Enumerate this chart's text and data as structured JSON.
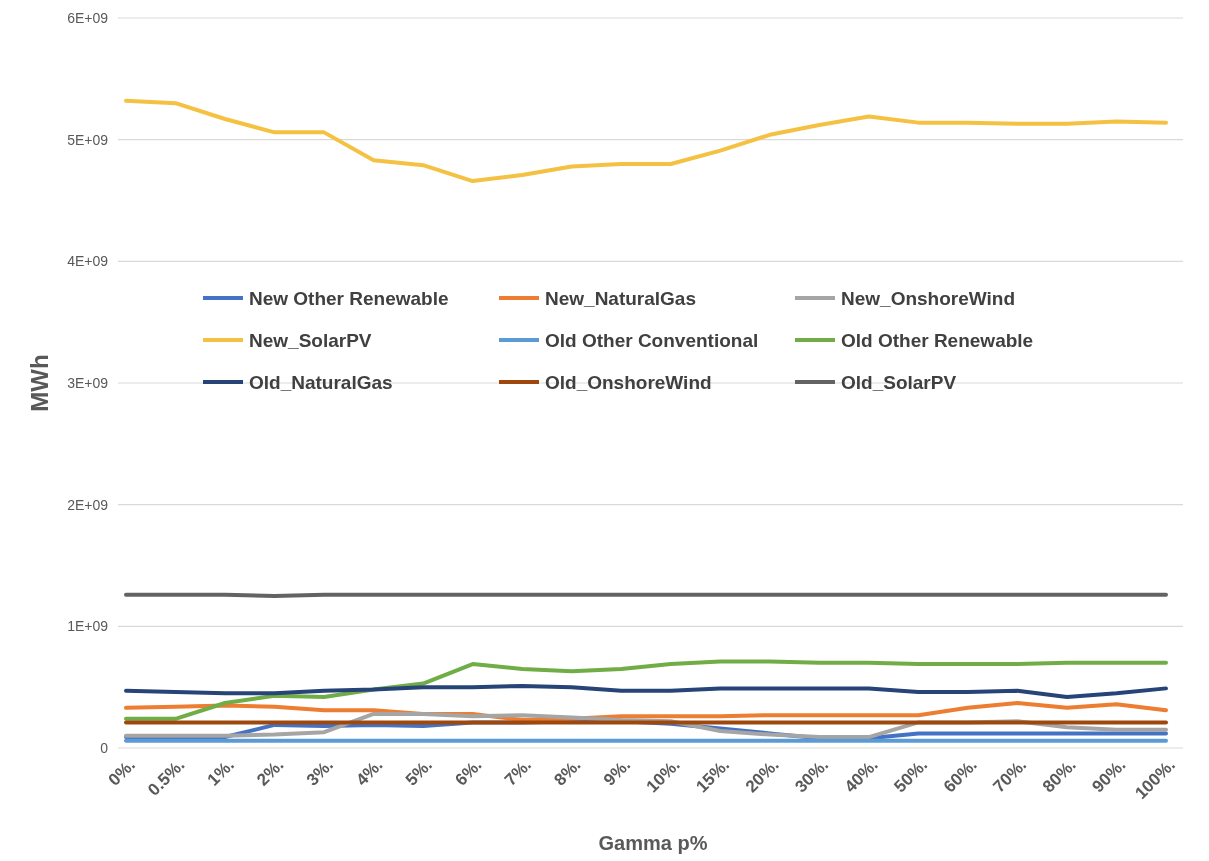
{
  "chart_data": {
    "type": "line",
    "xlabel": "Gamma p%",
    "ylabel": "MWh",
    "categories": [
      "0%.",
      "0.5%.",
      "1%.",
      "2%.",
      "3%.",
      "4%.",
      "5%.",
      "6%.",
      "7%.",
      "8%.",
      "9%.",
      "10%.",
      "15%.",
      "20%.",
      "30%.",
      "40%.",
      "50%.",
      "60%.",
      "70%.",
      "80%.",
      "90%.",
      "100%."
    ],
    "ylim": [
      0,
      6000000000
    ],
    "yticks": [
      0,
      {
        "value": 1000000000,
        "label": "1E+09"
      },
      {
        "value": 2000000000,
        "label": "2E+09"
      },
      {
        "value": 3000000000,
        "label": "3E+09"
      },
      {
        "value": 4000000000,
        "label": "4E+09"
      },
      {
        "value": 5000000000,
        "label": "5E+09"
      },
      {
        "value": 6000000000,
        "label": "6E+09"
      }
    ],
    "grid": "y",
    "legend": "top",
    "marker": "none",
    "line_style": "solid",
    "series": [
      {
        "name": "New Other Renewable",
        "color": "#4472c4",
        "values": [
          90000000,
          90000000,
          90000000,
          190000000,
          180000000,
          190000000,
          180000000,
          210000000,
          210000000,
          220000000,
          220000000,
          200000000,
          160000000,
          120000000,
          80000000,
          80000000,
          120000000,
          120000000,
          120000000,
          120000000,
          120000000,
          120000000
        ]
      },
      {
        "name": "New_NaturalGas",
        "color": "#ed7d31",
        "values": [
          330000000,
          340000000,
          350000000,
          340000000,
          310000000,
          310000000,
          280000000,
          280000000,
          230000000,
          240000000,
          260000000,
          260000000,
          260000000,
          270000000,
          270000000,
          270000000,
          270000000,
          330000000,
          370000000,
          330000000,
          360000000,
          310000000
        ]
      },
      {
        "name": "New_OnshoreWind",
        "color": "#a5a5a5",
        "values": [
          100000000,
          100000000,
          100000000,
          110000000,
          130000000,
          280000000,
          280000000,
          260000000,
          270000000,
          250000000,
          230000000,
          220000000,
          140000000,
          110000000,
          90000000,
          90000000,
          210000000,
          210000000,
          220000000,
          170000000,
          150000000,
          150000000
        ]
      },
      {
        "name": "New_SolarPV",
        "color": "#f4c142",
        "values": [
          5320000000,
          5300000000,
          5170000000,
          5060000000,
          5060000000,
          4830000000,
          4790000000,
          4660000000,
          4710000000,
          4780000000,
          4800000000,
          4800000000,
          4910000000,
          5040000000,
          5120000000,
          5190000000,
          5140000000,
          5140000000,
          5130000000,
          5130000000,
          5150000000,
          5140000000
        ]
      },
      {
        "name": "Old Other Conventional",
        "color": "#5b9bd5",
        "values": [
          60000000,
          60000000,
          60000000,
          60000000,
          60000000,
          60000000,
          60000000,
          60000000,
          60000000,
          60000000,
          60000000,
          60000000,
          60000000,
          60000000,
          60000000,
          60000000,
          60000000,
          60000000,
          60000000,
          60000000,
          60000000,
          60000000
        ]
      },
      {
        "name": "Old Other Renewable",
        "color": "#70ad47",
        "values": [
          240000000,
          240000000,
          370000000,
          430000000,
          420000000,
          480000000,
          530000000,
          690000000,
          650000000,
          630000000,
          650000000,
          690000000,
          710000000,
          710000000,
          700000000,
          700000000,
          690000000,
          690000000,
          690000000,
          700000000,
          700000000,
          700000000
        ]
      },
      {
        "name": "Old_NaturalGas",
        "color": "#264478",
        "values": [
          470000000,
          460000000,
          450000000,
          450000000,
          470000000,
          480000000,
          500000000,
          500000000,
          510000000,
          500000000,
          470000000,
          470000000,
          490000000,
          490000000,
          490000000,
          490000000,
          460000000,
          460000000,
          470000000,
          420000000,
          450000000,
          490000000
        ]
      },
      {
        "name": "Old_OnshoreWind",
        "color": "#9e480e",
        "values": [
          210000000,
          210000000,
          210000000,
          210000000,
          210000000,
          210000000,
          210000000,
          210000000,
          210000000,
          210000000,
          210000000,
          210000000,
          210000000,
          210000000,
          210000000,
          210000000,
          210000000,
          210000000,
          210000000,
          210000000,
          210000000,
          210000000
        ]
      },
      {
        "name": "Old_SolarPV",
        "color": "#636363",
        "values": [
          1260000000,
          1260000000,
          1260000000,
          1250000000,
          1260000000,
          1260000000,
          1260000000,
          1260000000,
          1260000000,
          1260000000,
          1260000000,
          1260000000,
          1260000000,
          1260000000,
          1260000000,
          1260000000,
          1260000000,
          1260000000,
          1260000000,
          1260000000,
          1260000000,
          1260000000
        ]
      }
    ]
  }
}
